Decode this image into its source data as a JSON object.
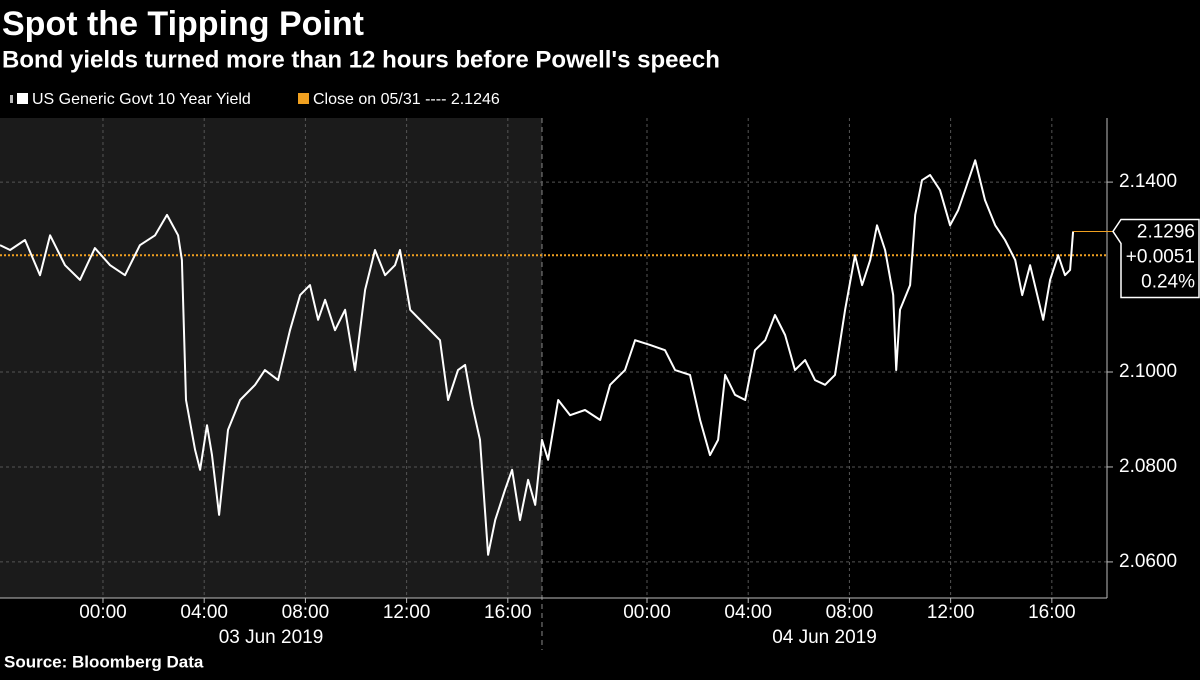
{
  "chart_data": {
    "type": "line",
    "title": "Spot the Tipping Point",
    "subtitle": "Bond yields turned more than 12 hours before Powell's speech",
    "source": "Source: Bloomberg Data",
    "xlim": [
      -4.07,
      42.18
    ],
    "session_break": [
      17.35,
      19.85
    ],
    "xticks": [
      {
        "value": 0,
        "label": "00:00"
      },
      {
        "value": 4,
        "label": "04:00"
      },
      {
        "value": 8,
        "label": "08:00"
      },
      {
        "value": 12,
        "label": "12:00"
      },
      {
        "value": 16,
        "label": "16:00"
      },
      {
        "value": 24,
        "label": "00:00"
      },
      {
        "value": 28,
        "label": "04:00"
      },
      {
        "value": 32,
        "label": "08:00"
      },
      {
        "value": 36,
        "label": "12:00"
      },
      {
        "value": 40,
        "label": "16:00"
      }
    ],
    "x_groups": [
      "03 Jun 2019",
      "04 Jun 2019"
    ],
    "ylim": [
      2.0524,
      2.1535
    ],
    "yticks": [
      {
        "value": 2.14,
        "label": "2.1400"
      },
      {
        "value": 2.1,
        "label": "2.1000"
      },
      {
        "value": 2.08,
        "label": "2.0800"
      },
      {
        "value": 2.06,
        "label": "2.0600"
      }
    ],
    "grid": true,
    "series": [
      {
        "name": "US Generic Govt 10 Year Yield",
        "color": "#ffffff",
        "x": [
          -4.07,
          -3.67,
          -3.08,
          -2.49,
          -2.09,
          -1.5,
          -0.91,
          -0.32,
          0.28,
          0.87,
          1.46,
          2.06,
          2.53,
          2.97,
          3.12,
          3.28,
          3.64,
          3.84,
          4.11,
          4.31,
          4.59,
          4.94,
          5.42,
          6.01,
          6.4,
          6.92,
          7.39,
          7.79,
          8.18,
          8.5,
          8.78,
          9.17,
          9.57,
          9.96,
          10.36,
          10.75,
          11.15,
          11.54,
          11.74,
          12.14,
          12.73,
          13.32,
          13.64,
          14.03,
          14.31,
          14.59,
          14.9,
          15.22,
          15.5,
          15.89,
          16.17,
          16.48,
          16.8,
          17.08,
          17.35,
          20.09,
          20.49,
          20.96,
          21.55,
          22.15,
          22.54,
          23.13,
          23.53,
          24.12,
          24.71,
          25.11,
          25.7,
          26.1,
          26.49,
          26.81,
          27.09,
          27.48,
          27.88,
          28.27,
          28.67,
          29.06,
          29.46,
          29.85,
          30.25,
          30.64,
          31.04,
          31.43,
          31.83,
          32.22,
          32.5,
          32.82,
          33.09,
          33.41,
          33.73,
          33.85,
          34.0,
          34.4,
          34.6,
          34.87,
          35.19,
          35.58,
          35.98,
          36.3,
          36.57,
          36.97,
          37.36,
          37.76,
          38.15,
          38.55,
          38.83,
          39.14,
          39.66,
          39.93,
          40.25,
          40.52,
          40.72,
          40.84
        ],
        "values": [
          2.1267,
          2.1257,
          2.1278,
          2.1204,
          2.1288,
          2.1225,
          2.1194,
          2.1261,
          2.1225,
          2.1204,
          2.1267,
          2.1288,
          2.1331,
          2.1288,
          2.1236,
          2.0941,
          2.0836,
          2.0794,
          2.0888,
          2.0825,
          2.0699,
          2.0878,
          2.0941,
          2.0973,
          2.1004,
          2.0983,
          2.1088,
          2.1162,
          2.1183,
          2.111,
          2.1152,
          2.1088,
          2.1131,
          2.1004,
          2.1173,
          2.1257,
          2.1204,
          2.1225,
          2.1257,
          2.1131,
          2.1099,
          2.1067,
          2.0941,
          2.1004,
          2.1015,
          2.0931,
          2.0857,
          2.0615,
          2.0688,
          2.0752,
          2.0794,
          2.0688,
          2.0773,
          2.072,
          2.0857,
          2.0815,
          2.0941,
          2.0909,
          2.092,
          2.0899,
          2.0973,
          2.1004,
          2.1067,
          2.1057,
          2.1046,
          2.1004,
          2.0994,
          2.0899,
          2.0825,
          2.0857,
          2.0994,
          2.0952,
          2.0941,
          2.1046,
          2.1067,
          2.112,
          2.1078,
          2.1004,
          2.1025,
          2.0983,
          2.0973,
          2.0994,
          2.1131,
          2.1246,
          2.1183,
          2.1236,
          2.1309,
          2.1257,
          2.1162,
          2.1004,
          2.1131,
          2.1183,
          2.1331,
          2.1404,
          2.1415,
          2.1383,
          2.1309,
          2.1341,
          2.1383,
          2.1446,
          2.1362,
          2.1309,
          2.1278,
          2.1236,
          2.1162,
          2.1225,
          2.111,
          2.1194,
          2.1246,
          2.1204,
          2.1215,
          2.1296
        ]
      }
    ],
    "reference_line": {
      "name": "Close on 05/31 ---- 2.1246",
      "value": 2.1246,
      "color": "#f0a020"
    },
    "last_value": {
      "value": 2.1296,
      "change": {
        "value": 0.0051,
        "label": "+0.0051"
      },
      "change_pct": {
        "value": 0.24,
        "label": "0.24%"
      }
    }
  }
}
